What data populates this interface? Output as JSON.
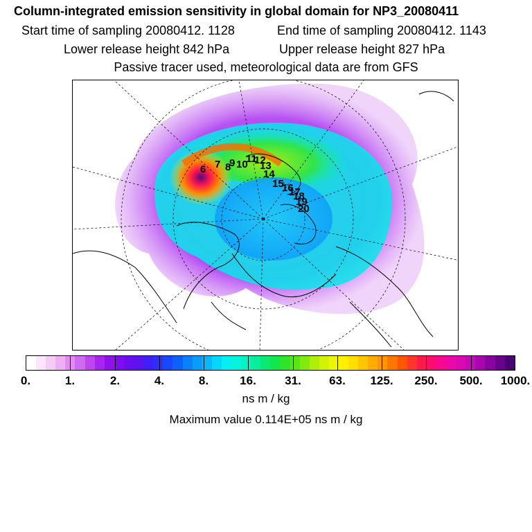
{
  "header": {
    "title": "Column-integrated emission sensitivity in global domain for NP3_20080411",
    "start_label": "Start time of sampling 20080412.  1128",
    "end_label": "End time of sampling 20080412.  1143",
    "lower_label": "Lower release height  842 hPa",
    "upper_label": "Upper release height  827 hPa",
    "tracer_line": "Passive tracer used, meteorological data are from GFS"
  },
  "map": {
    "markers": [
      "6",
      "7",
      "8",
      "9",
      "10",
      "11",
      "12",
      "13",
      "14",
      "15",
      "16",
      "17",
      "18",
      "19",
      "20"
    ]
  },
  "colorbar": {
    "labels": [
      "0.",
      "1.",
      "2.",
      "4.",
      "8.",
      "16.",
      "31.",
      "63.",
      "125.",
      "250.",
      "500.",
      "1000."
    ],
    "colors": [
      "#ffffff",
      "#fbe6fb",
      "#f5ccf5",
      "#eeb0f2",
      "#e28cf0",
      "#d06af2",
      "#be45f0",
      "#a725ef",
      "#9010ee",
      "#7d0cf0",
      "#6a0df0",
      "#5a14f0",
      "#4220f5",
      "#2c30fa",
      "#1848fc",
      "#0e62fc",
      "#0a80fc",
      "#0a9cfc",
      "#08b8fc",
      "#06d6fa",
      "#06eef2",
      "#06f4de",
      "#06f2c4",
      "#06ee9e",
      "#08ea74",
      "#12e64c",
      "#30e42a",
      "#58e616",
      "#84ea0e",
      "#aeee08",
      "#d4f206",
      "#eef406",
      "#fff000",
      "#ffde00",
      "#ffc600",
      "#ffae00",
      "#ff9400",
      "#ff7600",
      "#ff5600",
      "#ff3628",
      "#ff1a4c",
      "#ff0c70",
      "#f8088e",
      "#ec08a4",
      "#dc08b2",
      "#c608b8",
      "#aa06b0",
      "#8a04a0",
      "#68048a",
      "#480470"
    ],
    "units": "ns m / kg"
  },
  "footer": {
    "max_label": "Maximum value  0.114E+05 ns m / kg"
  }
}
